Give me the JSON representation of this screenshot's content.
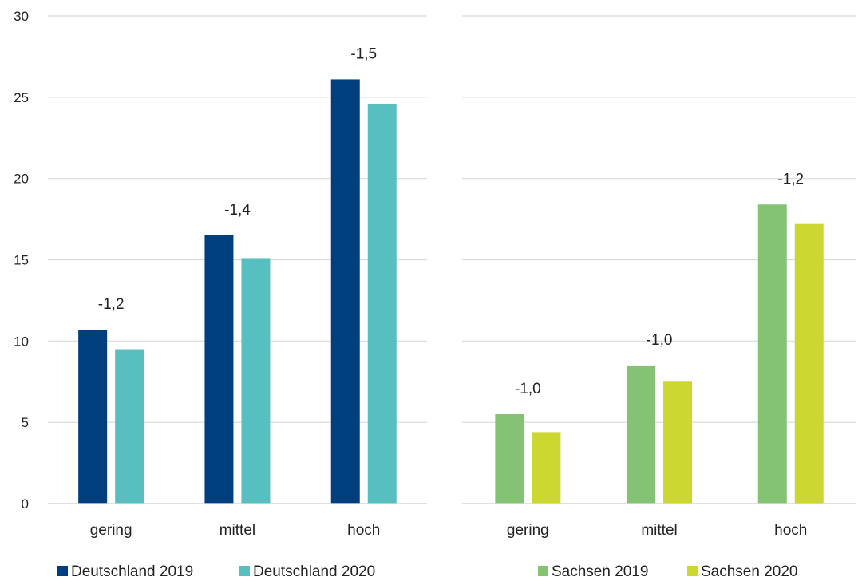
{
  "chart_data": [
    {
      "type": "bar",
      "categories": [
        "gering",
        "mittel",
        "hoch"
      ],
      "series": [
        {
          "name": "Deutschland 2019",
          "values": [
            10.7,
            16.5,
            26.1
          ],
          "color": "#003f7d"
        },
        {
          "name": "Deutschland 2020",
          "values": [
            9.5,
            15.1,
            24.6
          ],
          "color": "#57bfc0"
        }
      ],
      "annotations": [
        "-1,2",
        "-1,4",
        "-1,5"
      ],
      "yticks": [
        "0",
        "5",
        "10",
        "15",
        "20",
        "25",
        "30"
      ],
      "ylim": [
        0,
        30
      ],
      "grid": true,
      "legend": "bottom"
    },
    {
      "type": "bar",
      "categories": [
        "gering",
        "mittel",
        "hoch"
      ],
      "series": [
        {
          "name": "Sachsen 2019",
          "values": [
            5.5,
            8.5,
            18.4
          ],
          "color": "#84c374"
        },
        {
          "name": "Sachsen 2020",
          "values": [
            4.4,
            7.5,
            17.2
          ],
          "color": "#cdd731"
        }
      ],
      "annotations": [
        "-1,0",
        "-1,0",
        "-1,2"
      ],
      "ylim": [
        0,
        30
      ],
      "grid": true,
      "legend": "bottom"
    }
  ]
}
